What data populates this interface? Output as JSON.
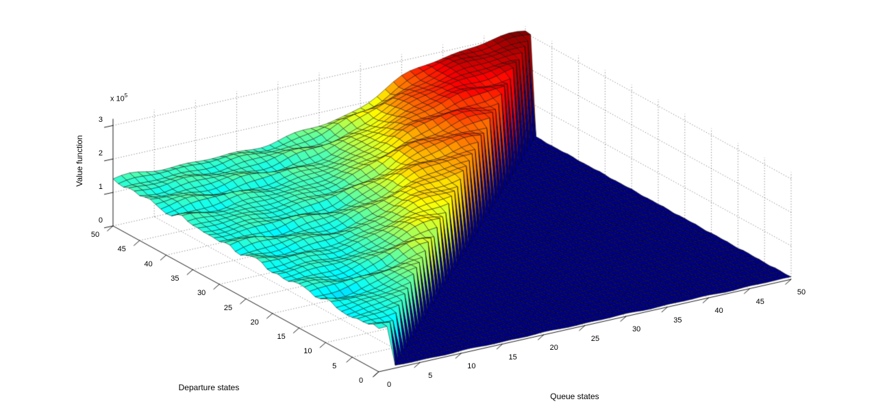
{
  "figure": {
    "background": "#ffffff",
    "type_hint": "matlab-style 3D surface figure, no title, no legend"
  },
  "chart_data": {
    "type": "surface",
    "title": "",
    "x_axis": {
      "label": "Queue states",
      "range": [
        0,
        50
      ],
      "tick_step": 5,
      "tick_labels": [
        "0",
        "5",
        "10",
        "15",
        "20",
        "25",
        "30",
        "35",
        "40",
        "45",
        "50"
      ]
    },
    "y_axis": {
      "label": "Departure states",
      "range": [
        0,
        50
      ],
      "tick_step": 5,
      "tick_labels": [
        "0",
        "5",
        "10",
        "15",
        "20",
        "25",
        "30",
        "35",
        "40",
        "45",
        "50"
      ]
    },
    "z_axis": {
      "label": "Value function",
      "tick_labels": [
        "0",
        "1",
        "2",
        "3"
      ],
      "scale_label": "x 10",
      "scale_exponent": "5",
      "scale_factor": 100000,
      "plot_top": 3.2,
      "grid": "dotted"
    },
    "surface_model": {
      "grid_points": 51,
      "description": "Value function over (queue state, departure state). Elevated wavy plateau where queue <= departure: ~1.2e5 along queue=0 rising to a ~3.1e5 dark-red peak at (50,50); a sharp cliff along queue ~= departure drops to a flat dark-blue region ~0.07e5 covering queue > departure.",
      "flat_value": 0.07,
      "edge_base": 1.22,
      "edge_slope_d": 0.003,
      "gain_per_d": 0.0345,
      "logistic_center_u": 0.64,
      "logistic_width_u": 0.083,
      "boundary_intercept": 1.8,
      "boundary_slope": 0.996,
      "ripple_amplitude": 1.0,
      "peak_value": 3.08,
      "color_axis": [
        0.07,
        3.08
      ],
      "colormap": "jet",
      "colormap_stops": [
        [
          0,
          "#000080"
        ],
        [
          0.125,
          "#0000ff"
        ],
        [
          0.375,
          "#00ffff"
        ],
        [
          0.625,
          "#ffff00"
        ],
        [
          0.875,
          "#ff0000"
        ],
        [
          1,
          "#800000"
        ]
      ],
      "mesh_line_color": "#000000",
      "back_row_profile_d50": [
        [
          0,
          1.36
        ],
        [
          10,
          1.38
        ],
        [
          20,
          1.4
        ],
        [
          30,
          1.7
        ],
        [
          35,
          2.55
        ],
        [
          40,
          2.95
        ],
        [
          45,
          3.05
        ],
        [
          50,
          3.06
        ]
      ],
      "cliff_top_profile": [
        [
          0,
          1.25
        ],
        [
          10,
          1.6
        ],
        [
          20,
          2.0
        ],
        [
          30,
          2.3
        ],
        [
          40,
          2.75
        ],
        [
          50,
          3.06
        ]
      ]
    }
  }
}
